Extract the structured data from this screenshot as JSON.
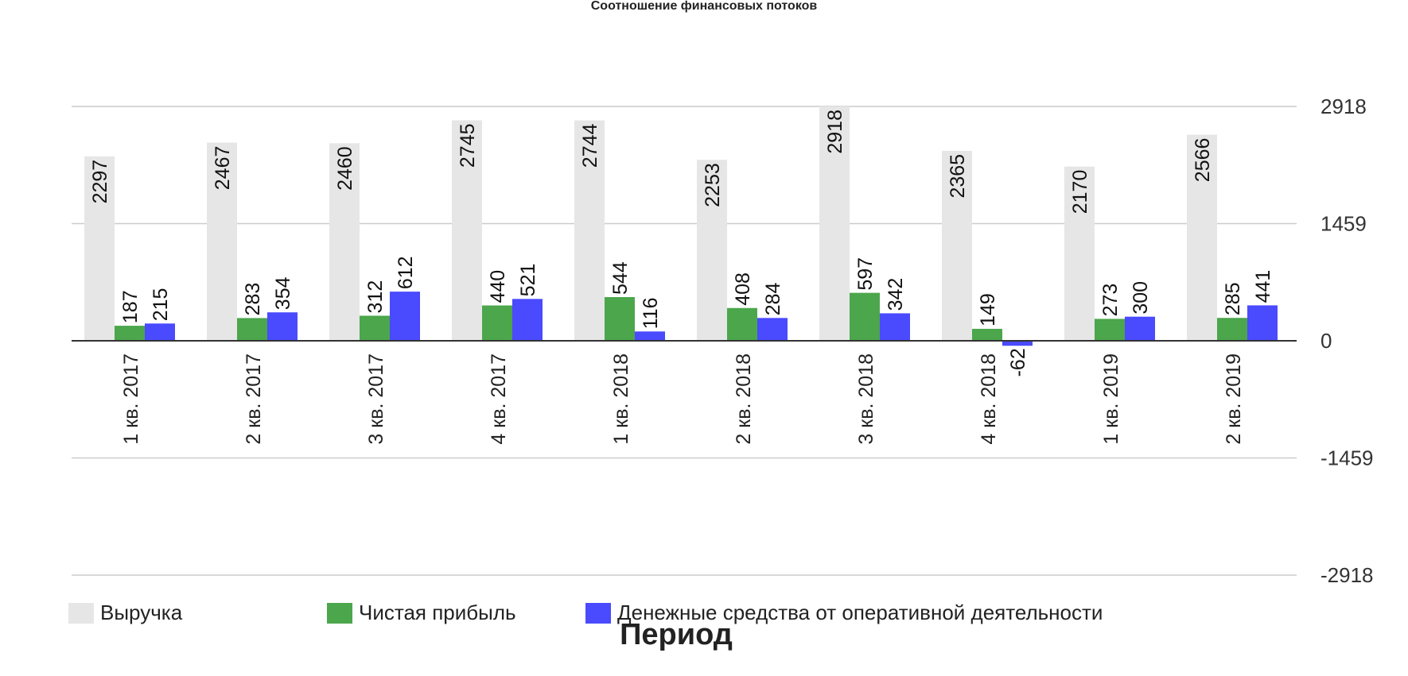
{
  "chart_data": {
    "type": "bar",
    "title": "Соотношение финансовых потоков",
    "xlabel": "Период",
    "ylabel": "",
    "categories": [
      "1 кв. 2017",
      "2 кв. 2017",
      "3 кв. 2017",
      "4 кв. 2017",
      "1 кв. 2018",
      "2 кв. 2018",
      "3 кв. 2018",
      "4 кв. 2018",
      "1 кв. 2019",
      "2 кв. 2019"
    ],
    "series": [
      {
        "name": "Выручка",
        "color": "#e6e6e6",
        "values": [
          2297,
          2467,
          2460,
          2745,
          2744,
          2253,
          2918,
          2365,
          2170,
          2566
        ]
      },
      {
        "name": "Чистая прибыль",
        "color": "#4ca64c",
        "values": [
          187,
          283,
          312,
          440,
          544,
          408,
          597,
          149,
          273,
          285
        ]
      },
      {
        "name": "Денежные средства от оперативной деятельности",
        "color": "#4a4aff",
        "values": [
          215,
          354,
          612,
          521,
          116,
          284,
          342,
          -62,
          300,
          441
        ]
      }
    ],
    "ylim": [
      -2918,
      2918
    ],
    "yticks": [
      "2918",
      "1459",
      "0",
      "-1459",
      "-2918"
    ],
    "y_axis_side": "right",
    "grid": true,
    "legend_position": "bottom-left"
  }
}
